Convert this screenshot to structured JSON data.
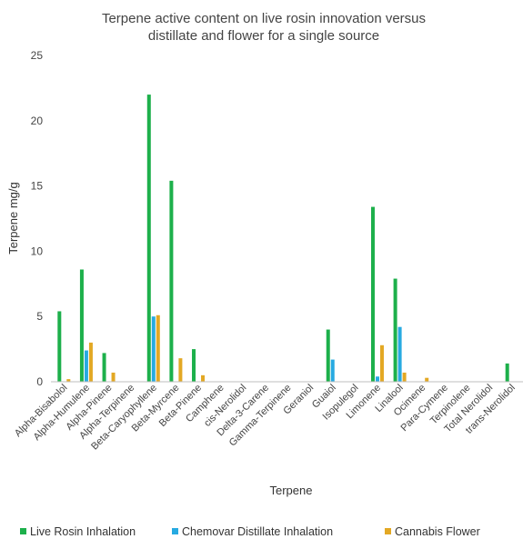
{
  "chart_data": {
    "type": "bar",
    "title_lines": [
      "Terpene active content on live rosin innovation versus",
      "distillate and flower for a single source"
    ],
    "xlabel": "Terpene",
    "ylabel": "Terpene mg/g",
    "ylim": [
      0,
      25
    ],
    "yticks": [
      0,
      5,
      10,
      15,
      20,
      25
    ],
    "grid": false,
    "legend_position": "bottom",
    "categories": [
      "Alpha-Bisabolol",
      "Alpha-Humulene",
      "Alpha-Pinene",
      "Alpha-Terpinene",
      "Beta-Caryophyllene",
      "Beta-Myrcene",
      "Beta-Pinene",
      "Camphene",
      "cis-Nerolidol",
      "Delta-3-Carene",
      "Gamma-Terpinene",
      "Geraniol",
      "Guaiol",
      "Isopulegol",
      "Limonene",
      "Linalool",
      "Ocimene",
      "Para-Cymene",
      "Terpinolene",
      "Total Nerolidol",
      "trans-Nerolidol"
    ],
    "series": [
      {
        "name": "Live Rosin Inhalation",
        "color": "#1db04b",
        "values": [
          5.4,
          8.6,
          2.2,
          0,
          22.0,
          15.4,
          2.5,
          0,
          0,
          0,
          0,
          0,
          4.0,
          0,
          13.4,
          7.9,
          0,
          0,
          0,
          0,
          1.4
        ]
      },
      {
        "name": "Chemovar Distillate Inhalation",
        "color": "#27aae1",
        "values": [
          0,
          2.4,
          0,
          0,
          5.0,
          0,
          0,
          0,
          0,
          0,
          0,
          0,
          1.7,
          0,
          0.4,
          4.2,
          0,
          0,
          0,
          0,
          0
        ]
      },
      {
        "name": "Cannabis Flower",
        "color": "#e3a824",
        "values": [
          0.2,
          3.0,
          0.7,
          0,
          5.1,
          1.8,
          0.5,
          0,
          0,
          0,
          0,
          0,
          0,
          0,
          2.8,
          0.7,
          0.3,
          0,
          0,
          0,
          0
        ]
      }
    ],
    "axis_color": "#bfbfbf"
  }
}
